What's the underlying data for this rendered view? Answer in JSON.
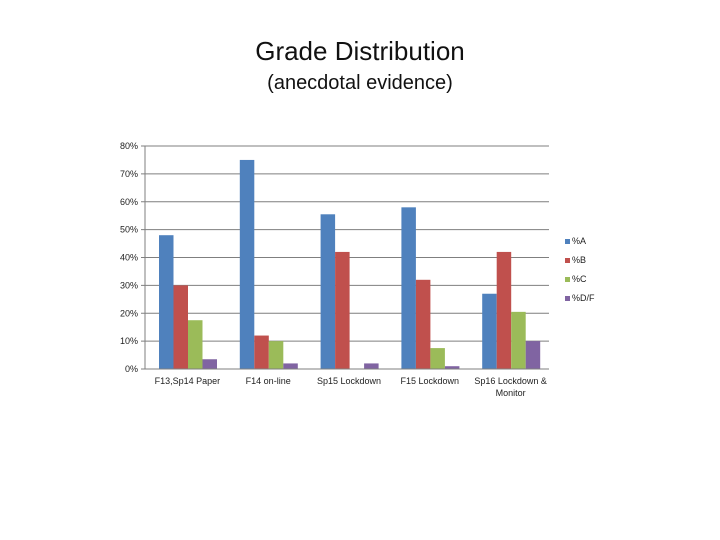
{
  "slide": {
    "title": "Grade Distribution",
    "subtitle": "(anecdotal evidence)"
  },
  "chart_data": {
    "type": "bar",
    "categories": [
      "F13,Sp14 Paper",
      "F14 on-line",
      "Sp15 Lockdown",
      "F15 Lockdown",
      "Sp16 Lockdown & Monitor"
    ],
    "series": [
      {
        "name": "%A",
        "color": "#4F81BD",
        "values": [
          48,
          75,
          55.5,
          58,
          27
        ]
      },
      {
        "name": "%B",
        "color": "#C0504D",
        "values": [
          30,
          12,
          42,
          32,
          42
        ]
      },
      {
        "name": "%C",
        "color": "#9BBB59",
        "values": [
          17.5,
          10,
          0,
          7.5,
          20.5
        ]
      },
      {
        "name": "%D/F",
        "color": "#8064A2",
        "values": [
          3.5,
          2,
          2,
          1,
          10
        ]
      }
    ],
    "ylim": [
      0,
      80
    ],
    "yticks": [
      "0%",
      "10%",
      "20%",
      "30%",
      "40%",
      "50%",
      "60%",
      "70%",
      "80%"
    ],
    "grid": true,
    "legend": "right"
  }
}
